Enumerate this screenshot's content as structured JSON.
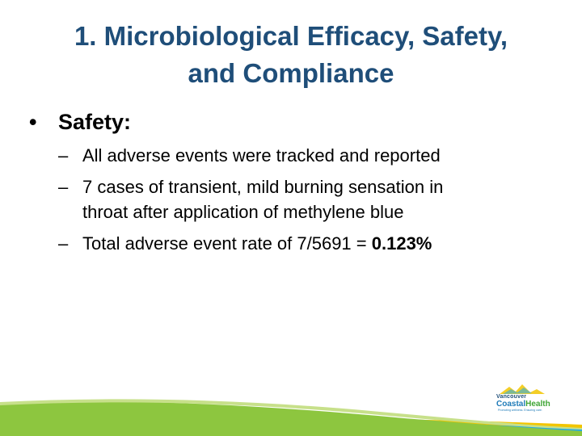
{
  "slide": {
    "title_line1": "1. Microbiological Efficacy, Safety,",
    "title_line2": "and Compliance",
    "bullet_marker": "•",
    "dash_marker": "–",
    "section": {
      "label": "Safety:",
      "items": [
        {
          "text": "All adverse events were tracked and reported"
        },
        {
          "text_line1": "7 cases of transient, mild burning sensation in",
          "text_line2": "throat after application of methylene blue"
        },
        {
          "text_prefix": "Total adverse event rate of 7/5691 = ",
          "text_emphasis": "0.123%"
        }
      ]
    }
  },
  "logo": {
    "line1": "Vancouver",
    "line2_part1": "Coastal",
    "line2_part2": "Health",
    "line3": "Promoting wellness. Ensuring care."
  },
  "colors": {
    "title": "#1f4e79",
    "wave_green": "#8dc63f",
    "wave_blue": "#29abe2",
    "wave_yellow": "#f2c500"
  }
}
